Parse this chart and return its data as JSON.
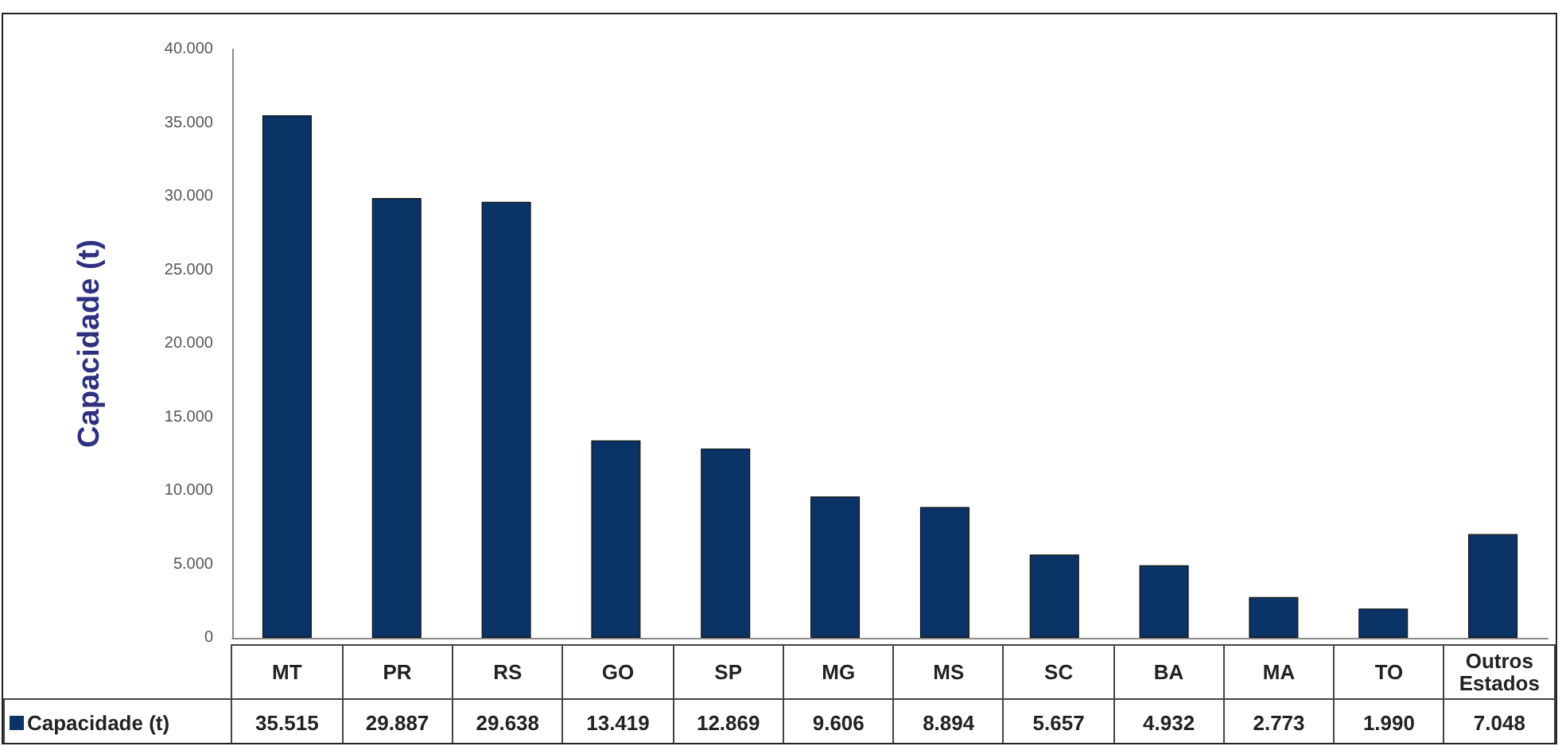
{
  "chart_data": {
    "type": "bar",
    "ylabel": "Capacidade (t)",
    "categories": [
      "MT",
      "PR",
      "RS",
      "GO",
      "SP",
      "MG",
      "MS",
      "SC",
      "BA",
      "MA",
      "TO",
      "Outros Estados"
    ],
    "series": [
      {
        "name": "Capacidade (t)",
        "color": "#0b3466",
        "values": [
          35515,
          29887,
          29638,
          13419,
          12869,
          9606,
          8894,
          5657,
          4932,
          2773,
          1990,
          7048
        ],
        "value_labels": [
          "35.515",
          "29.887",
          "29.638",
          "13.419",
          "12.869",
          "9.606",
          "8.894",
          "5.657",
          "4.932",
          "2.773",
          "1.990",
          "7.048"
        ]
      }
    ],
    "ylim": [
      0,
      40000
    ],
    "yticks": [
      {
        "value": 0,
        "label": "0"
      },
      {
        "value": 5000,
        "label": "5.000"
      },
      {
        "value": 10000,
        "label": "10.000"
      },
      {
        "value": 15000,
        "label": "15.000"
      },
      {
        "value": 20000,
        "label": "20.000"
      },
      {
        "value": 25000,
        "label": "25.000"
      },
      {
        "value": 30000,
        "label": "30.000"
      },
      {
        "value": 35000,
        "label": "35.000"
      },
      {
        "value": 40000,
        "label": "40.000"
      }
    ],
    "grid": false,
    "legend": "bottom"
  }
}
